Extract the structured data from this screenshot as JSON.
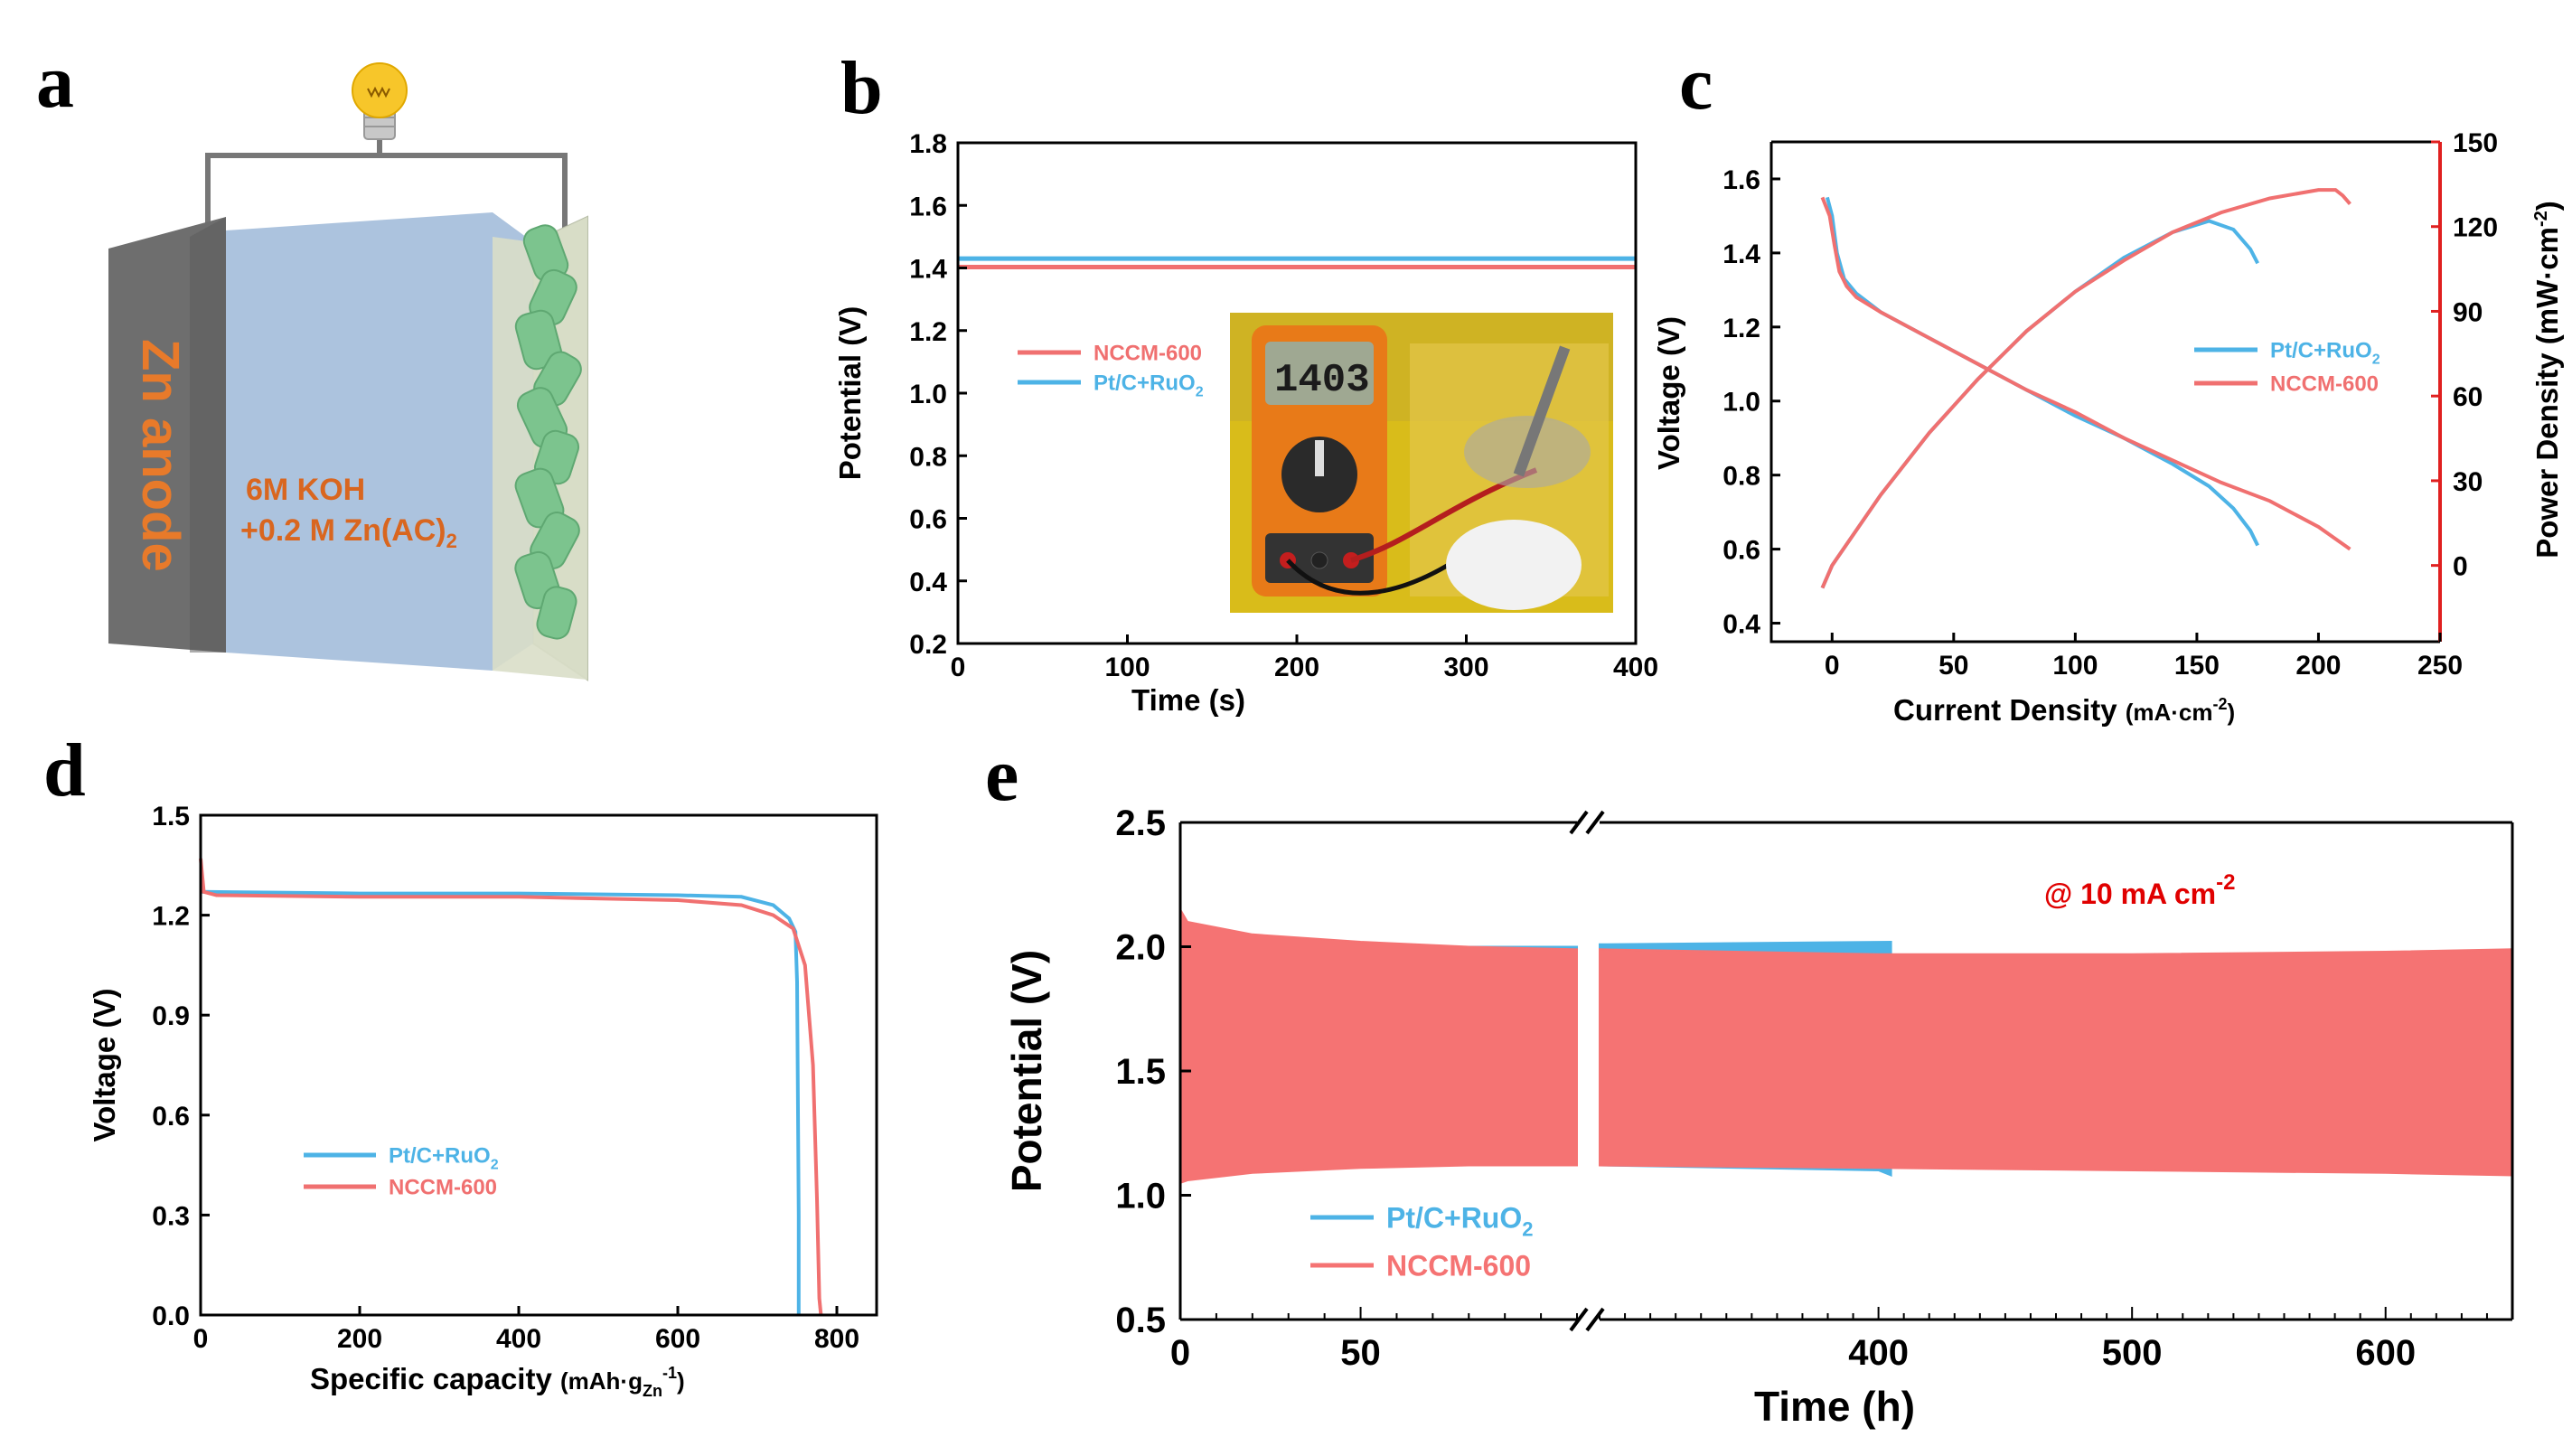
{
  "colors": {
    "red": "#F07070",
    "blue": "#4DB3E6",
    "red_fill": "#F57373",
    "red_text": "#E02020",
    "annot_red": "#E00000",
    "orange": "#E87A2A",
    "zn_dark": "#6E6E6E",
    "electrolyte": "#9DB8D8",
    "cathode": "#D9DEC8",
    "catalyst": "#7CC48E"
  },
  "panel_labels": [
    "a",
    "b",
    "c",
    "d",
    "e"
  ],
  "panel_a": {
    "zn_label": "Zn anode",
    "electrolyte_line1": "6M KOH",
    "electrolyte_line2": "+0.2 M Zn(AC)",
    "electrolyte_sub": "2"
  },
  "chart_data": [
    {
      "panel": "b",
      "type": "line",
      "xlabel": "Time (s)",
      "ylabel": "Potential (V)",
      "xlim": [
        0,
        400
      ],
      "ylim": [
        0.2,
        1.8
      ],
      "xticks": [
        0,
        100,
        200,
        300,
        400
      ],
      "yticks": [
        0.2,
        0.4,
        0.6,
        0.8,
        1.0,
        1.2,
        1.4,
        1.6,
        1.8
      ],
      "series": [
        {
          "name": "NCCM-600",
          "color": "#F07070",
          "x": [
            0,
            400
          ],
          "y": [
            1.403,
            1.403
          ]
        },
        {
          "name": "Pt/C+RuO",
          "sub": "2",
          "color": "#4DB3E6",
          "x": [
            0,
            400
          ],
          "y": [
            1.43,
            1.43
          ]
        }
      ],
      "inset": {
        "meter_reading": "1403"
      }
    },
    {
      "panel": "c",
      "type": "line",
      "xlabel": "Current Density",
      "xlabel_unit": "(mA·cm",
      "xlabel_sup": "-2",
      "ylabel": "Voltage (V)",
      "y2label": "Power Density (mW·cm",
      "y2label_sup": "-2",
      "xlim": [
        -25,
        250
      ],
      "ylim": [
        0.35,
        1.7
      ],
      "y2lim": [
        -27,
        150
      ],
      "xticks": [
        0,
        50,
        100,
        150,
        200,
        250
      ],
      "yticks": [
        0.4,
        0.6,
        0.8,
        1.0,
        1.2,
        1.4,
        1.6
      ],
      "y2ticks": [
        0,
        30,
        60,
        90,
        120,
        150
      ],
      "series": [
        {
          "name": "Pt/C+RuO",
          "sub": "2",
          "color": "#4DB3E6",
          "kind": "voltage",
          "x": [
            -2,
            0,
            2,
            5,
            10,
            20,
            40,
            60,
            80,
            100,
            120,
            140,
            155,
            165,
            172,
            175
          ],
          "y": [
            1.55,
            1.5,
            1.4,
            1.33,
            1.29,
            1.24,
            1.17,
            1.1,
            1.03,
            0.96,
            0.9,
            0.83,
            0.77,
            0.71,
            0.65,
            0.61
          ]
        },
        {
          "name": "NCCM-600",
          "color": "#F07070",
          "kind": "voltage",
          "x": [
            -4,
            -1,
            1,
            3,
            6,
            10,
            20,
            40,
            60,
            80,
            100,
            120,
            140,
            160,
            180,
            200,
            213
          ],
          "y": [
            1.55,
            1.5,
            1.42,
            1.35,
            1.31,
            1.28,
            1.24,
            1.17,
            1.1,
            1.03,
            0.97,
            0.9,
            0.84,
            0.78,
            0.73,
            0.66,
            0.6
          ]
        },
        {
          "name": "Pt/C+RuO",
          "sub": "2",
          "color": "#4DB3E6",
          "kind": "power",
          "x": [
            -4,
            0,
            20,
            40,
            60,
            80,
            100,
            120,
            140,
            155,
            165,
            172,
            175
          ],
          "y": [
            -8,
            0,
            25,
            47,
            66,
            83,
            97,
            109,
            118,
            122,
            119,
            112,
            107
          ]
        },
        {
          "name": "NCCM-600",
          "color": "#F07070",
          "kind": "power",
          "x": [
            -4,
            0,
            20,
            40,
            60,
            80,
            100,
            120,
            140,
            160,
            180,
            200,
            207,
            210,
            213
          ],
          "y": [
            -8,
            0,
            25,
            47,
            66,
            83,
            97,
            108,
            118,
            125,
            130,
            133,
            133,
            131,
            128
          ]
        }
      ]
    },
    {
      "panel": "d",
      "type": "line",
      "xlabel": "Specific capacity",
      "xlabel_unit": "(mAh·g",
      "xlabel_sub": "Zn",
      "xlabel_sup": "-1",
      "ylabel": "Voltage (V)",
      "xlim": [
        0,
        850
      ],
      "ylim": [
        0,
        1.5
      ],
      "xticks": [
        0,
        200,
        400,
        600,
        800
      ],
      "yticks": [
        0.0,
        0.3,
        0.6,
        0.9,
        1.2,
        1.5
      ],
      "series": [
        {
          "name": "Pt/C+RuO",
          "sub": "2",
          "color": "#4DB3E6",
          "x": [
            0,
            200,
            400,
            600,
            680,
            720,
            740,
            748,
            750,
            752,
            752
          ],
          "y": [
            1.27,
            1.265,
            1.265,
            1.26,
            1.255,
            1.23,
            1.19,
            1.15,
            1.0,
            0.3,
            0.0
          ]
        },
        {
          "name": "NCCM-600",
          "color": "#F07070",
          "x": [
            0,
            4,
            20,
            200,
            400,
            600,
            680,
            720,
            745,
            760,
            770,
            775,
            778,
            780
          ],
          "y": [
            1.37,
            1.27,
            1.26,
            1.255,
            1.255,
            1.245,
            1.23,
            1.2,
            1.16,
            1.05,
            0.75,
            0.35,
            0.05,
            0.0
          ]
        }
      ]
    },
    {
      "panel": "e",
      "type": "area",
      "xlabel": "Time (h)",
      "ylabel": "Potential (V)",
      "ylim": [
        0.5,
        2.5
      ],
      "yticks": [
        0.5,
        1.0,
        1.5,
        2.0,
        2.5
      ],
      "x_segments": [
        {
          "xlim": [
            0,
            110
          ],
          "ticks": [
            0,
            50
          ]
        },
        {
          "xlim": [
            290,
            650
          ],
          "ticks": [
            400,
            500,
            600
          ]
        }
      ],
      "annotation": "@ 10 mA cm",
      "annotation_sup": "-2",
      "series": [
        {
          "name": "Pt/C+RuO",
          "sub": "2",
          "color": "#4DB3E6",
          "upper": {
            "x": [
              0,
              110,
              290,
              405
            ],
            "y": [
              2.0,
              2.0,
              2.01,
              2.02
            ]
          },
          "lower": {
            "x": [
              0,
              110,
              290,
              400,
              405
            ],
            "y": [
              1.12,
              1.12,
              1.12,
              1.1,
              1.08
            ]
          }
        },
        {
          "name": "NCCM-600",
          "color": "#F57373",
          "upper": {
            "x": [
              0,
              2,
              20,
              50,
              80,
              110,
              290,
              400,
              500,
              600,
              650
            ],
            "y": [
              2.15,
              2.1,
              2.05,
              2.02,
              2.0,
              1.99,
              1.99,
              1.97,
              1.97,
              1.98,
              1.99
            ]
          },
          "lower": {
            "x": [
              0,
              2,
              20,
              50,
              80,
              110,
              290,
              400,
              500,
              600,
              650
            ],
            "y": [
              1.05,
              1.06,
              1.09,
              1.11,
              1.12,
              1.12,
              1.12,
              1.11,
              1.1,
              1.09,
              1.08
            ]
          }
        }
      ]
    }
  ]
}
